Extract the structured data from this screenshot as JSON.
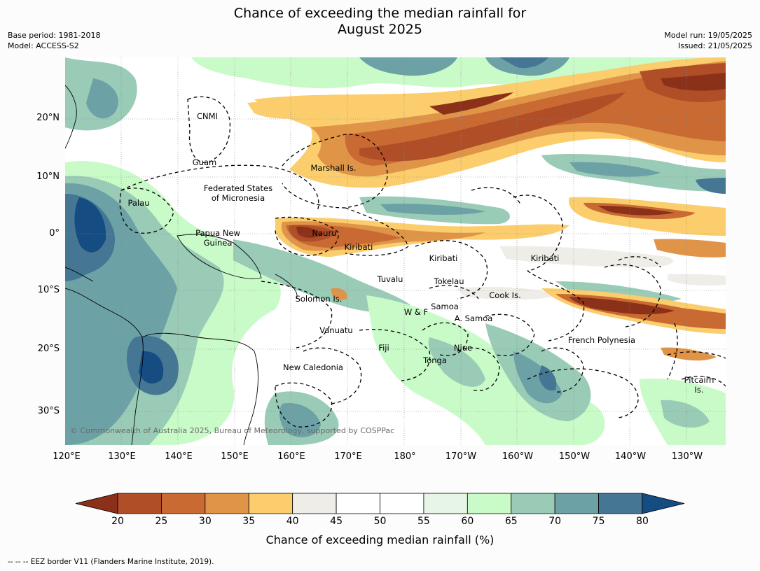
{
  "header": {
    "title_line1": "Chance of exceeding the median rainfall for",
    "title_line2": "August 2025",
    "base_period": "Base period: 1981-2018",
    "model": "Model: ACCESS-S2",
    "model_run": "Model run: 19/05/2025",
    "issued": "Issued: 21/05/2025"
  },
  "map": {
    "lat_labels": [
      "20°N",
      "10°N",
      "0°",
      "10°S",
      "20°S",
      "30°S"
    ],
    "lon_labels": [
      "120°E",
      "130°E",
      "140°E",
      "150°E",
      "160°E",
      "170°E",
      "180°",
      "170°W",
      "160°W",
      "150°W",
      "140°W",
      "130°W"
    ],
    "regions": {
      "cnmi": "CNMI",
      "guam": "Guam",
      "marshall": "Marshall Is.",
      "fsm1": "Federated States",
      "fsm2": "of Micronesia",
      "palau": "Palau",
      "png1": "Papua New",
      "png2": "Guinea",
      "nauru": "Nauru",
      "kiribati_w": "Kiribati",
      "kiribati_c": "Kiribati",
      "kiribati_e": "Kiribati",
      "tuvalu": "Tuvalu",
      "tokelau": "Tokelau",
      "cook": "Cook Is.",
      "solomon": "Solomon Is.",
      "wf": "W & F",
      "samoa": "Samoa",
      "asamoa": "A. Samoa",
      "vanuatu": "Vanuatu",
      "fiji": "Fiji",
      "niue": "Niue",
      "tonga": "Tonga",
      "french_polynesia": "French Polynesia",
      "new_caledonia": "New Caledonia",
      "pitcairn1": "Pitcairn",
      "pitcairn2": "Is."
    },
    "copyright": "© Commonwealth of Australia 2025, Bureau of Meteorology, supported by COSPPac"
  },
  "colorbar": {
    "ticks": [
      "20",
      "25",
      "30",
      "35",
      "40",
      "45",
      "50",
      "55",
      "60",
      "65",
      "70",
      "75",
      "80"
    ],
    "colors": [
      "#8c3119",
      "#b04e28",
      "#c96a33",
      "#e09448",
      "#fbcd6c",
      "#efede8",
      "#ffffff",
      "#ffffff",
      "#e7f5e6",
      "#c9fbc8",
      "#99cbb6",
      "#6ca1a6",
      "#457693",
      "#154c82"
    ],
    "label": "Chance of exceeding median rainfall (%)"
  },
  "footer": "--  --  -- EEZ border V11 (Flanders Marine Institute, 2019)."
}
